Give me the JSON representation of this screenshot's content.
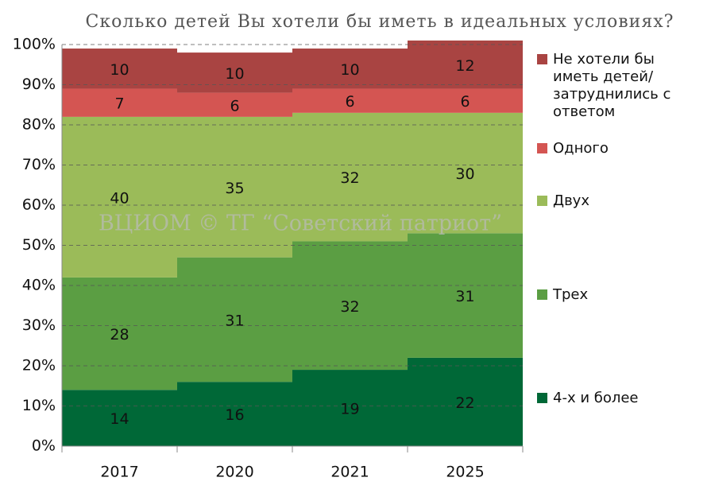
{
  "chart_data": {
    "type": "bar",
    "stacked": true,
    "title": "Сколько детей Вы хотели бы иметь в идеальных условиях?",
    "annotation": "ВЦИОМ © ТГ “Советский патриот”",
    "categories": [
      "2017",
      "2020",
      "2021",
      "2025"
    ],
    "series": [
      {
        "name": "4-х и более",
        "color": "#006837",
        "values": [
          14,
          16,
          19,
          22
        ]
      },
      {
        "name": "Трех",
        "color": "#5b9e43",
        "values": [
          28,
          31,
          32,
          31
        ]
      },
      {
        "name": "Двух",
        "color": "#9bbb59",
        "values": [
          40,
          35,
          32,
          30
        ]
      },
      {
        "name": "Одного",
        "color": "#d45552",
        "values": [
          7,
          6,
          6,
          6
        ]
      },
      {
        "name": "Не хотели бы иметь детей/ затруднились с ответом",
        "color": "#a94442",
        "values": [
          10,
          10,
          10,
          12
        ]
      }
    ],
    "ylim": [
      0,
      100
    ],
    "yticks": [
      {
        "value": 0,
        "label": "0%"
      },
      {
        "value": 10,
        "label": "10%"
      },
      {
        "value": 20,
        "label": "20%"
      },
      {
        "value": 30,
        "label": "30%"
      },
      {
        "value": 40,
        "label": "40%"
      },
      {
        "value": 50,
        "label": "50%"
      },
      {
        "value": 60,
        "label": "60%"
      },
      {
        "value": 70,
        "label": "70%"
      },
      {
        "value": 80,
        "label": "80%"
      },
      {
        "value": 90,
        "label": "90%"
      },
      {
        "value": 100,
        "label": "100%"
      }
    ],
    "grid": true,
    "legend": "right"
  }
}
